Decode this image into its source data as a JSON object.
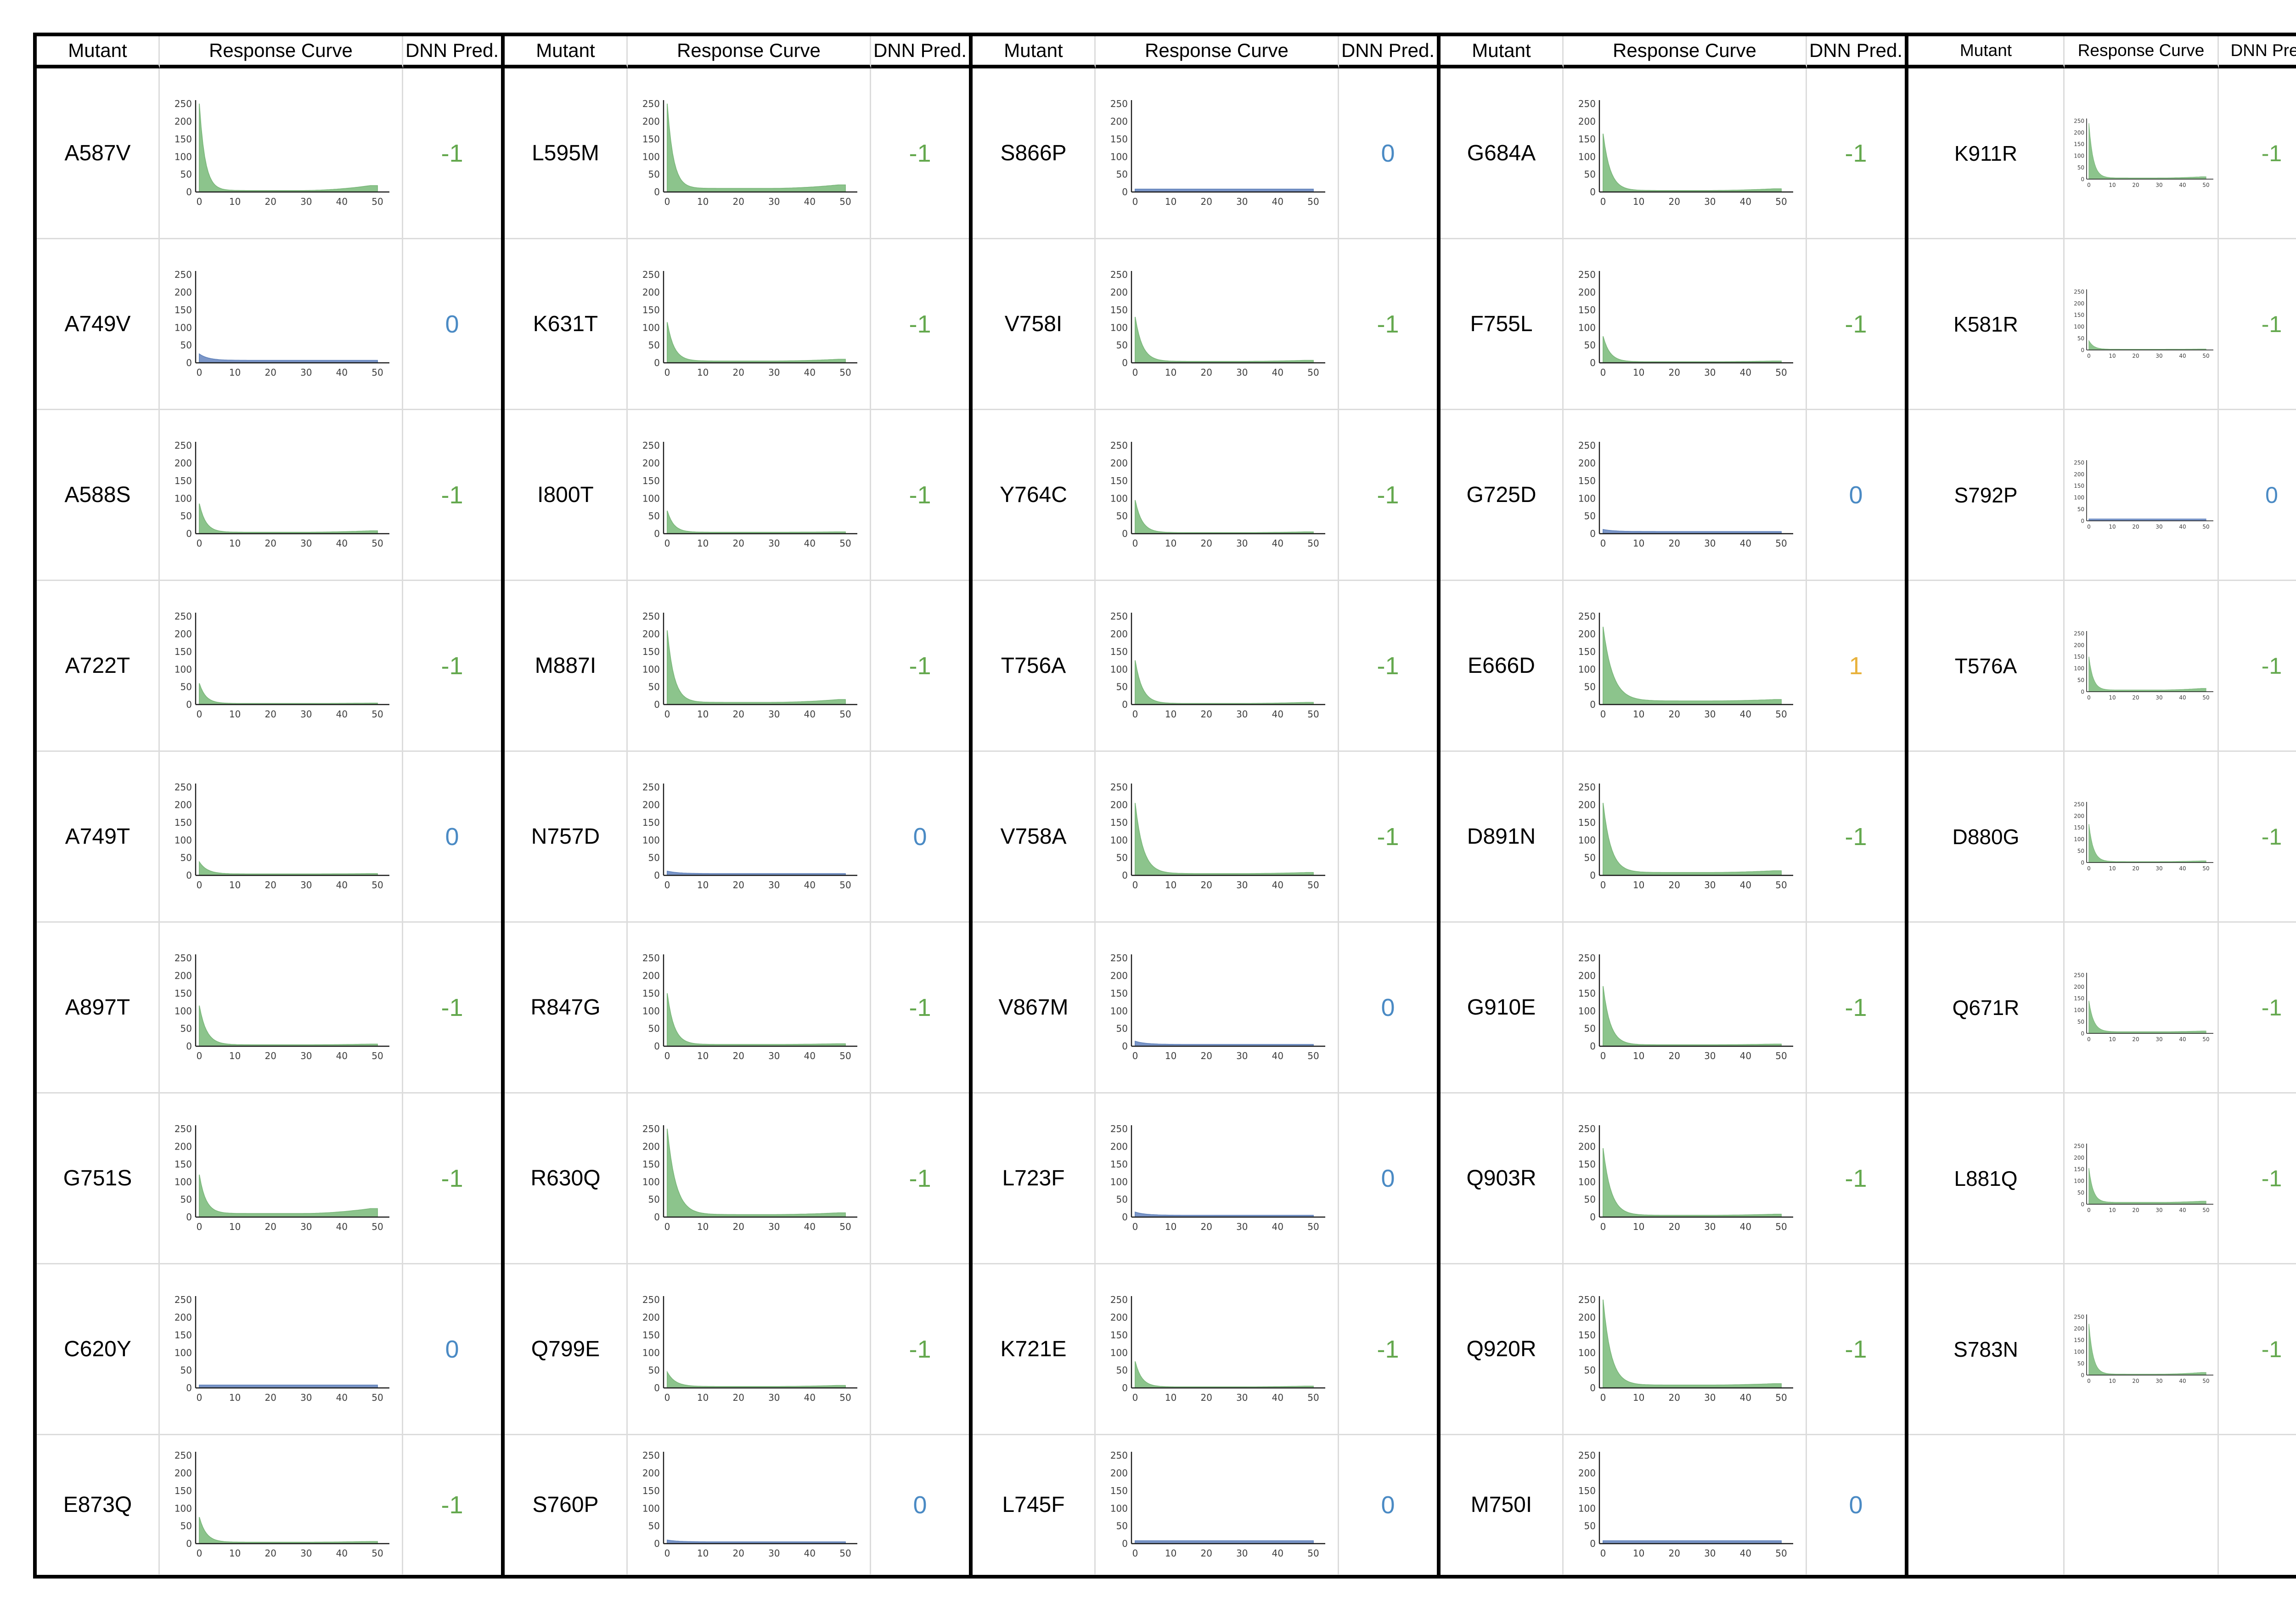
{
  "table": {
    "headers": [
      "Mutant",
      "Response Curve",
      "DNN Pred."
    ]
  },
  "colors": {
    "pred_negative": "#64A84E",
    "pred_zero": "#4A8AC4",
    "pred_positive": "#E8B23C",
    "curve_green_fill": "#8CC48C",
    "curve_green_stroke": "#7CB87C",
    "curve_blue_fill": "#7B96C8",
    "curve_blue_stroke": "#6384BC",
    "axis": "#1a1a1a",
    "tick_label": "#3d3d3d",
    "cell_line": "#dcdcdc",
    "table_border": "#000000"
  },
  "axis": {
    "x_ticks": [
      0,
      10,
      20,
      30,
      40,
      50
    ],
    "y_ticks": [
      0,
      50,
      100,
      150,
      200,
      250
    ],
    "x_max": 50,
    "y_max": 250
  },
  "chart_data": {
    "type": "area",
    "title": "",
    "xlabel": "",
    "ylabel": "",
    "x_range": [
      0,
      50
    ],
    "y_range": [
      0,
      250
    ],
    "grid": false,
    "legend": "none",
    "groups": [
      {
        "rows": [
          {
            "mutant": "A587V",
            "pred": -1,
            "pred_label": "-1",
            "curve": {
              "color": "green",
              "peak": 250,
              "plateau": 4,
              "end": 18,
              "tau": 1.6
            }
          },
          {
            "mutant": "A749V",
            "pred": 0,
            "pred_label": "0",
            "curve": {
              "color": "blue",
              "peak": 25,
              "plateau": 7,
              "end": 7,
              "tau": 2.5
            }
          },
          {
            "mutant": "A588S",
            "pred": -1,
            "pred_label": "-1",
            "curve": {
              "color": "green",
              "peak": 85,
              "plateau": 4,
              "end": 8,
              "tau": 1.8
            }
          },
          {
            "mutant": "A722T",
            "pred": -1,
            "pred_label": "-1",
            "curve": {
              "color": "green",
              "peak": 60,
              "plateau": 3,
              "end": 4,
              "tau": 1.8
            }
          },
          {
            "mutant": "A749T",
            "pred": 0,
            "pred_label": "0",
            "curve": {
              "color": "green",
              "peak": 38,
              "plateau": 4,
              "end": 5,
              "tau": 2.2
            }
          },
          {
            "mutant": "A897T",
            "pred": -1,
            "pred_label": "-1",
            "curve": {
              "color": "green",
              "peak": 115,
              "plateau": 4,
              "end": 6,
              "tau": 2.0
            }
          },
          {
            "mutant": "G751S",
            "pred": -1,
            "pred_label": "-1",
            "curve": {
              "color": "green",
              "peak": 120,
              "plateau": 10,
              "end": 24,
              "tau": 1.8
            }
          },
          {
            "mutant": "C620Y",
            "pred": 0,
            "pred_label": "0",
            "curve": {
              "color": "blue",
              "peak": 8,
              "plateau": 8,
              "end": 8,
              "tau": 1
            }
          },
          {
            "mutant": "E873Q",
            "pred": -1,
            "pred_label": "-1",
            "curve": {
              "color": "green",
              "peak": 75,
              "plateau": 4,
              "end": 6,
              "tau": 1.9
            }
          }
        ]
      },
      {
        "rows": [
          {
            "mutant": "L595M",
            "pred": -1,
            "pred_label": "-1",
            "curve": {
              "color": "green",
              "peak": 250,
              "plateau": 10,
              "end": 20,
              "tau": 1.7
            }
          },
          {
            "mutant": "K631T",
            "pred": -1,
            "pred_label": "-1",
            "curve": {
              "color": "green",
              "peak": 115,
              "plateau": 5,
              "end": 10,
              "tau": 1.9
            }
          },
          {
            "mutant": "I800T",
            "pred": -1,
            "pred_label": "-1",
            "curve": {
              "color": "green",
              "peak": 65,
              "plateau": 4,
              "end": 5,
              "tau": 1.8
            }
          },
          {
            "mutant": "M887I",
            "pred": -1,
            "pred_label": "-1",
            "curve": {
              "color": "green",
              "peak": 210,
              "plateau": 6,
              "end": 14,
              "tau": 1.9
            }
          },
          {
            "mutant": "N757D",
            "pred": 0,
            "pred_label": "0",
            "curve": {
              "color": "blue",
              "peak": 12,
              "plateau": 5,
              "end": 5,
              "tau": 3
            }
          },
          {
            "mutant": "R847G",
            "pred": -1,
            "pred_label": "-1",
            "curve": {
              "color": "green",
              "peak": 150,
              "plateau": 5,
              "end": 7,
              "tau": 1.9
            }
          },
          {
            "mutant": "R630Q",
            "pred": -1,
            "pred_label": "-1",
            "curve": {
              "color": "green",
              "peak": 250,
              "plateau": 7,
              "end": 12,
              "tau": 2.4
            }
          },
          {
            "mutant": "Q799E",
            "pred": -1,
            "pred_label": "-1",
            "curve": {
              "color": "green",
              "peak": 45,
              "plateau": 4,
              "end": 7,
              "tau": 2.2
            }
          },
          {
            "mutant": "S760P",
            "pred": 0,
            "pred_label": "0",
            "curve": {
              "color": "blue",
              "peak": 10,
              "plateau": 5,
              "end": 5,
              "tau": 3
            }
          }
        ]
      },
      {
        "rows": [
          {
            "mutant": "S866P",
            "pred": 0,
            "pred_label": "0",
            "curve": {
              "color": "blue",
              "peak": 8,
              "plateau": 8,
              "end": 8,
              "tau": 1
            }
          },
          {
            "mutant": "V758I",
            "pred": -1,
            "pred_label": "-1",
            "curve": {
              "color": "green",
              "peak": 130,
              "plateau": 4,
              "end": 7,
              "tau": 2.0
            }
          },
          {
            "mutant": "Y764C",
            "pred": -1,
            "pred_label": "-1",
            "curve": {
              "color": "green",
              "peak": 95,
              "plateau": 3,
              "end": 5,
              "tau": 1.9
            }
          },
          {
            "mutant": "T756A",
            "pred": -1,
            "pred_label": "-1",
            "curve": {
              "color": "green",
              "peak": 125,
              "plateau": 3,
              "end": 6,
              "tau": 2.0
            }
          },
          {
            "mutant": "V758A",
            "pred": -1,
            "pred_label": "-1",
            "curve": {
              "color": "green",
              "peak": 205,
              "plateau": 5,
              "end": 8,
              "tau": 2.2
            }
          },
          {
            "mutant": "V867M",
            "pred": 0,
            "pred_label": "0",
            "curve": {
              "color": "blue",
              "peak": 14,
              "plateau": 5,
              "end": 5,
              "tau": 3
            }
          },
          {
            "mutant": "L723F",
            "pred": 0,
            "pred_label": "0",
            "curve": {
              "color": "blue",
              "peak": 14,
              "plateau": 5,
              "end": 5,
              "tau": 3
            }
          },
          {
            "mutant": "K721E",
            "pred": -1,
            "pred_label": "-1",
            "curve": {
              "color": "green",
              "peak": 75,
              "plateau": 3,
              "end": 5,
              "tau": 1.8
            }
          },
          {
            "mutant": "L745F",
            "pred": 0,
            "pred_label": "0",
            "curve": {
              "color": "blue",
              "peak": 8,
              "plateau": 8,
              "end": 8,
              "tau": 1
            }
          }
        ]
      },
      {
        "rows": [
          {
            "mutant": "G684A",
            "pred": -1,
            "pred_label": "-1",
            "curve": {
              "color": "green",
              "peak": 165,
              "plateau": 4,
              "end": 9,
              "tau": 2.0
            }
          },
          {
            "mutant": "F755L",
            "pred": -1,
            "pred_label": "-1",
            "curve": {
              "color": "green",
              "peak": 75,
              "plateau": 3,
              "end": 5,
              "tau": 1.9
            }
          },
          {
            "mutant": "G725D",
            "pred": 0,
            "pred_label": "0",
            "curve": {
              "color": "blue",
              "peak": 12,
              "plateau": 6,
              "end": 6,
              "tau": 3
            }
          },
          {
            "mutant": "E666D",
            "pred": 1,
            "pred_label": "1",
            "curve": {
              "color": "green",
              "peak": 220,
              "plateau": 10,
              "end": 14,
              "tau": 2.7
            }
          },
          {
            "mutant": "D891N",
            "pred": -1,
            "pred_label": "-1",
            "curve": {
              "color": "green",
              "peak": 205,
              "plateau": 8,
              "end": 13,
              "tau": 2.2
            }
          },
          {
            "mutant": "G910E",
            "pred": -1,
            "pred_label": "-1",
            "curve": {
              "color": "green",
              "peak": 170,
              "plateau": 4,
              "end": 6,
              "tau": 2.0
            }
          },
          {
            "mutant": "Q903R",
            "pred": -1,
            "pred_label": "-1",
            "curve": {
              "color": "green",
              "peak": 195,
              "plateau": 5,
              "end": 8,
              "tau": 2.2
            }
          },
          {
            "mutant": "Q920R",
            "pred": -1,
            "pred_label": "-1",
            "curve": {
              "color": "green",
              "peak": 250,
              "plateau": 8,
              "end": 12,
              "tau": 2.2
            }
          },
          {
            "mutant": "M750I",
            "pred": 0,
            "pred_label": "0",
            "curve": {
              "color": "blue",
              "peak": 8,
              "plateau": 8,
              "end": 8,
              "tau": 1
            }
          }
        ]
      },
      {
        "rows": [
          {
            "mutant": "K911R",
            "pred": -1,
            "pred_label": "-1",
            "curve": {
              "color": "green",
              "peak": 240,
              "plateau": 5,
              "end": 10,
              "tau": 1.8
            }
          },
          {
            "mutant": "K581R",
            "pred": -1,
            "pred_label": "-1",
            "curve": {
              "color": "green",
              "peak": 40,
              "plateau": 3,
              "end": 4,
              "tau": 2.0
            }
          },
          {
            "mutant": "S792P",
            "pred": 0,
            "pred_label": "0",
            "curve": {
              "color": "blue",
              "peak": 8,
              "plateau": 8,
              "end": 8,
              "tau": 1
            }
          },
          {
            "mutant": "T576A",
            "pred": -1,
            "pred_label": "-1",
            "curve": {
              "color": "green",
              "peak": 150,
              "plateau": 7,
              "end": 14,
              "tau": 1.8
            }
          },
          {
            "mutant": "D880G",
            "pred": -1,
            "pred_label": "-1",
            "curve": {
              "color": "green",
              "peak": 165,
              "plateau": 4,
              "end": 7,
              "tau": 1.9
            }
          },
          {
            "mutant": "Q671R",
            "pred": -1,
            "pred_label": "-1",
            "curve": {
              "color": "green",
              "peak": 140,
              "plateau": 7,
              "end": 10,
              "tau": 2.0
            }
          },
          {
            "mutant": "L881Q",
            "pred": -1,
            "pred_label": "-1",
            "curve": {
              "color": "green",
              "peak": 155,
              "plateau": 8,
              "end": 13,
              "tau": 1.8
            }
          },
          {
            "mutant": "S783N",
            "pred": -1,
            "pred_label": "-1",
            "curve": {
              "color": "green",
              "peak": 220,
              "plateau": 4,
              "end": 11,
              "tau": 1.8
            }
          },
          {
            "mutant": "",
            "pred": null,
            "pred_label": "",
            "curve": null
          }
        ]
      }
    ]
  }
}
